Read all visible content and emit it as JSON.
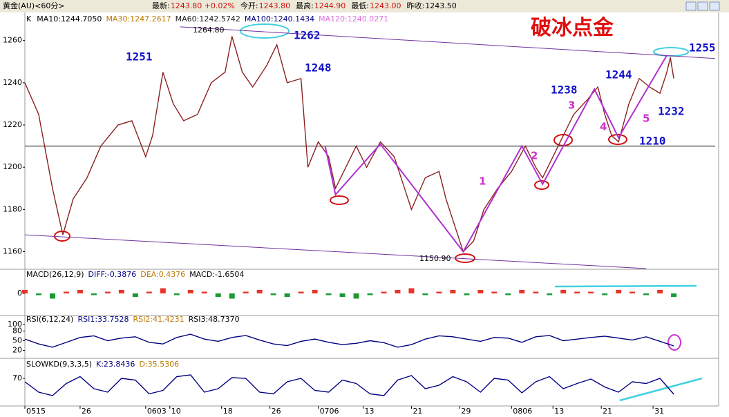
{
  "header": {
    "symbol": "黄金(AU)<60分>",
    "quote": [
      {
        "label": "最新:",
        "value": "1243.80 +0.02%"
      },
      {
        "label": "今开:",
        "value": "1243.80"
      },
      {
        "label": "最高:",
        "value": "1244.90"
      },
      {
        "label": "最低:",
        "value": "1243.00"
      },
      {
        "label": "昨收:",
        "value": "1243.50"
      }
    ]
  },
  "chart_data": [
    {
      "type": "line",
      "title": "破冰点金",
      "label": "K",
      "legend": [
        {
          "name": "MA10:1244.7050",
          "color": "#000000"
        },
        {
          "name": "MA30:1247.2617",
          "color": "#c07800"
        },
        {
          "name": "MA60:1242.5742",
          "color": "#202020"
        },
        {
          "name": "MA100:1240.1434",
          "color": "#000080"
        },
        {
          "name": "MA120:1240.0271",
          "color": "#e070e0"
        }
      ],
      "x": [
        0,
        4,
        8,
        11,
        14,
        18,
        22,
        27,
        31,
        35,
        37,
        40,
        43,
        46,
        50,
        54,
        58,
        60,
        63,
        66,
        70,
        73,
        76,
        80,
        82,
        85,
        88,
        90,
        93,
        96,
        99,
        103,
        107,
        110,
        112,
        116,
        120,
        122,
        125,
        127,
        130,
        133,
        137,
        141,
        145,
        148,
        150,
        153,
        156,
        159,
        163,
        166,
        168,
        170,
        172,
        175,
        178,
        181,
        184,
        186,
        187,
        188
      ],
      "values": [
        1240,
        1225,
        1190,
        1168,
        1185,
        1195,
        1210,
        1220,
        1222,
        1205,
        1215,
        1245,
        1230,
        1222,
        1225,
        1240,
        1245,
        1262,
        1245,
        1238,
        1248,
        1258,
        1240,
        1242,
        1200,
        1212,
        1205,
        1190,
        1200,
        1210,
        1200,
        1212,
        1205,
        1190,
        1180,
        1195,
        1198,
        1185,
        1170,
        1160,
        1165,
        1180,
        1190,
        1198,
        1210,
        1200,
        1195,
        1205,
        1215,
        1225,
        1232,
        1238,
        1225,
        1215,
        1212,
        1230,
        1242,
        1238,
        1235,
        1245,
        1252,
        1242
      ],
      "color": "#8b2020",
      "xlim": [
        0,
        200
      ],
      "ylim": [
        1152,
        1272
      ],
      "yticks": [
        1160,
        1180,
        1200,
        1220,
        1240,
        1260
      ],
      "xticks": [
        {
          "value": 0,
          "label": "0515"
        },
        {
          "value": 16,
          "label": "26"
        },
        {
          "value": 35,
          "label": "0603"
        },
        {
          "value": 42,
          "label": "10"
        },
        {
          "value": 57,
          "label": "18"
        },
        {
          "value": 71,
          "label": "26"
        },
        {
          "value": 85,
          "label": "0706"
        },
        {
          "value": 98,
          "label": "13"
        },
        {
          "value": 112,
          "label": "21"
        },
        {
          "value": 126,
          "label": "29"
        },
        {
          "value": 141,
          "label": "0806"
        },
        {
          "value": 153,
          "label": "13"
        },
        {
          "value": 167,
          "label": "21"
        },
        {
          "value": 182,
          "label": "31"
        }
      ],
      "annotations": [
        "1251",
        "1262",
        "1248",
        "1238",
        "1244",
        "1232",
        "1210",
        "1255"
      ],
      "extremes": [
        "1264.80",
        "1150.90"
      ],
      "wave_labels": [
        "1",
        "2",
        "3",
        "4",
        "5"
      ],
      "channel": [
        {
          "x": [
            45,
            200
          ],
          "y": [
            1266.5,
            1251.5
          ],
          "color": "#7030a0"
        },
        {
          "x": [
            0,
            180
          ],
          "y": [
            1168,
            1152
          ],
          "color": "#7030a0"
        }
      ],
      "support": {
        "y": 1210,
        "color": "#606060"
      },
      "zigzag": {
        "x": [
          87,
          90,
          103,
          127,
          144,
          150,
          165,
          172,
          186
        ],
        "y": [
          1210,
          1187,
          1211,
          1160,
          1210,
          1192,
          1237,
          1214,
          1253
        ],
        "color": "#b030d0"
      }
    },
    {
      "type": "bar",
      "legend": [
        {
          "name": "MACD(26,12,9)",
          "color": "#000000"
        },
        {
          "name": "DIFF:-0.3876",
          "color": "#000080"
        },
        {
          "name": "DEA:0.4376",
          "color": "#c07800"
        },
        {
          "name": "MACD:-1.6504",
          "color": "#000000"
        }
      ],
      "x": [
        0,
        4,
        8,
        12,
        16,
        20,
        24,
        28,
        32,
        36,
        40,
        44,
        48,
        52,
        56,
        60,
        64,
        68,
        72,
        76,
        80,
        84,
        88,
        92,
        96,
        100,
        104,
        108,
        112,
        116,
        120,
        124,
        128,
        132,
        136,
        140,
        144,
        148,
        152,
        156,
        160,
        164,
        168,
        172,
        176,
        180,
        184,
        188
      ],
      "values": [
        2,
        -1,
        -3,
        1,
        2,
        -1,
        1,
        2,
        -2,
        1,
        3,
        -1,
        2,
        1,
        -2,
        -3,
        1,
        2,
        -1,
        -2,
        1,
        2,
        -1,
        -2,
        -3,
        -1,
        1,
        2,
        3,
        -1,
        1,
        2,
        -1,
        2,
        1,
        -1,
        2,
        1,
        -1,
        2,
        1,
        1,
        -1,
        2,
        1,
        -1,
        2,
        -2
      ],
      "colors": {
        "up": "#e8352b",
        "down": "#1a9a36"
      },
      "xlim": [
        0,
        200
      ],
      "ylim": [
        -8,
        8
      ],
      "yticks": [
        0
      ]
    },
    {
      "type": "line",
      "legend": [
        {
          "name": "RSI(6,12,24)",
          "color": "#000000"
        },
        {
          "name": "RSI1:33.7528",
          "color": "#000080"
        },
        {
          "name": "RSI2:41.4231",
          "color": "#c07800"
        },
        {
          "name": "RSI3:48.7370",
          "color": "#000000"
        }
      ],
      "x": [
        0,
        4,
        8,
        12,
        16,
        20,
        24,
        28,
        32,
        36,
        40,
        44,
        48,
        52,
        56,
        60,
        64,
        68,
        72,
        76,
        80,
        84,
        88,
        92,
        96,
        100,
        104,
        108,
        112,
        116,
        120,
        124,
        128,
        132,
        136,
        140,
        144,
        148,
        152,
        156,
        160,
        164,
        168,
        172,
        176,
        180,
        184,
        188
      ],
      "values": [
        55,
        40,
        30,
        45,
        60,
        65,
        50,
        58,
        62,
        45,
        40,
        60,
        70,
        55,
        48,
        60,
        66,
        52,
        40,
        35,
        48,
        55,
        45,
        38,
        42,
        50,
        44,
        30,
        38,
        55,
        65,
        62,
        55,
        48,
        60,
        58,
        45,
        62,
        66,
        50,
        55,
        60,
        64,
        58,
        52,
        62,
        48,
        34
      ],
      "color": "#000080",
      "xlim": [
        0,
        200
      ],
      "ylim": [
        0,
        100
      ],
      "yticks": [
        20,
        50,
        80,
        100
      ]
    },
    {
      "type": "line",
      "legend": [
        {
          "name": "SLOWKD(9,3,3,5)",
          "color": "#000000"
        },
        {
          "name": "K:23.8436",
          "color": "#000080"
        },
        {
          "name": "D:35.5306",
          "color": "#c07800"
        }
      ],
      "x": [
        0,
        4,
        8,
        12,
        16,
        20,
        24,
        28,
        32,
        36,
        40,
        44,
        48,
        52,
        56,
        60,
        64,
        68,
        72,
        76,
        80,
        84,
        88,
        92,
        96,
        100,
        104,
        108,
        112,
        116,
        120,
        124,
        128,
        132,
        136,
        140,
        144,
        148,
        152,
        156,
        160,
        164,
        168,
        172,
        176,
        180,
        184,
        188
      ],
      "values": [
        60,
        30,
        20,
        55,
        75,
        40,
        30,
        70,
        65,
        25,
        35,
        75,
        80,
        30,
        40,
        72,
        70,
        30,
        25,
        60,
        70,
        35,
        30,
        65,
        55,
        25,
        20,
        65,
        78,
        40,
        50,
        75,
        60,
        30,
        70,
        65,
        28,
        60,
        75,
        40,
        55,
        68,
        45,
        30,
        60,
        55,
        70,
        24
      ],
      "color": "#000080",
      "xlim": [
        0,
        200
      ],
      "ylim": [
        0,
        100
      ],
      "yticks": [
        70
      ]
    }
  ]
}
